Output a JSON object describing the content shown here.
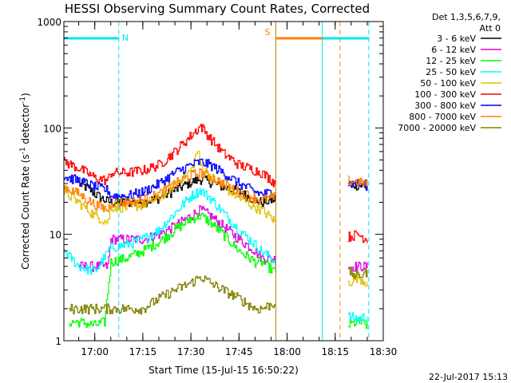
{
  "chart_data": {
    "type": "line",
    "title": "HESSI Observing Summary Count Rates, Corrected",
    "xlabel": "Start Time (15-Jul-15 16:50:22)",
    "ylabel": "Corrected Count Rate (s",
    "ylabel_sup1": "-1",
    "ylabel_mid": " detector",
    "ylabel_sup2": "-1",
    "ylabel_end": ")",
    "yscale": "log",
    "ylim": [
      1,
      1000
    ],
    "xlim": [
      "16:50:22",
      "18:30:00"
    ],
    "x_ticks": [
      "17:00",
      "17:15",
      "17:30",
      "17:45",
      "18:00",
      "18:15",
      "18:30"
    ],
    "y_ticks": [
      "1",
      "10",
      "100",
      "1000"
    ],
    "grid": false,
    "legend_position": "right",
    "legend_header": [
      "Det 1,3,5,6,7,9,",
      "Att 0"
    ],
    "timestamp": "22-Jul-2017 15:13",
    "flags": [
      {
        "label": "N",
        "color": "#00e5ee",
        "start": "16:50:22",
        "end": "17:07:30"
      },
      {
        "label": "S",
        "color": "#ff8000",
        "start": "17:56:30",
        "end": "18:16:30"
      },
      {
        "label": "",
        "color": "#00e5ee",
        "start": "18:11:00",
        "end": "18:25:30"
      }
    ],
    "markers": [
      {
        "time": "17:07:30",
        "color": "#00e5ee",
        "style": "dashed"
      },
      {
        "time": "17:56:30",
        "color": "#b8860b",
        "style": "solid"
      },
      {
        "time": "18:11:00",
        "color": "#00e5ee",
        "style": "solid"
      },
      {
        "time": "18:16:30",
        "color": "#ff8000",
        "style": "dashed"
      },
      {
        "time": "18:25:30",
        "color": "#00e5ee",
        "style": "dashed"
      }
    ],
    "segments": [
      [
        "16:50:22",
        "17:56:30"
      ],
      [
        "18:19:00",
        "18:25:30"
      ]
    ],
    "series": [
      {
        "name": "3 - 6 keV",
        "color": "#000000",
        "x": [
          "16:55",
          "16:58",
          "17:00",
          "17:03",
          "17:05",
          "17:10",
          "17:15",
          "17:20",
          "17:25",
          "17:30",
          "17:33",
          "17:36",
          "17:40",
          "17:45",
          "17:50",
          "17:52",
          "18:19",
          "18:22",
          "18:25"
        ],
        "y": [
          30,
          27,
          24,
          21,
          20,
          20,
          20,
          22,
          26,
          31,
          33,
          31,
          28,
          25,
          21,
          20,
          30,
          29,
          28
        ]
      },
      {
        "name": "6 - 12 keV",
        "color": "#e000e0",
        "x": [
          "16:55",
          "17:00",
          "17:04",
          "17:05",
          "17:10",
          "17:15",
          "17:20",
          "17:25",
          "17:30",
          "17:33",
          "17:36",
          "17:40",
          "17:45",
          "17:50",
          "17:52",
          "18:19",
          "18:22",
          "18:25"
        ],
        "y": [
          5,
          5,
          5,
          9,
          9,
          9,
          10,
          12,
          15,
          17,
          15,
          12,
          9,
          7,
          6,
          5,
          5,
          5
        ]
      },
      {
        "name": "12 - 25 keV",
        "color": "#00ff00",
        "x": [
          "16:52",
          "16:55",
          "17:00",
          "17:03",
          "17:05",
          "17:10",
          "17:15",
          "17:20",
          "17:25",
          "17:30",
          "17:33",
          "17:36",
          "17:40",
          "17:45",
          "17:50",
          "17:52",
          "18:19",
          "18:22",
          "18:25"
        ],
        "y": [
          1.5,
          1.5,
          1.4,
          1.5,
          5.5,
          6,
          7,
          8.5,
          11,
          14,
          15,
          13,
          10,
          7,
          5.5,
          5.5,
          1.4,
          1.5,
          1.4
        ]
      },
      {
        "name": "25 - 50 keV",
        "color": "#00ffff",
        "x": [
          "16:50:22",
          "16:55",
          "17:00",
          "17:05",
          "17:10",
          "17:15",
          "17:20",
          "17:25",
          "17:30",
          "17:33",
          "17:36",
          "17:40",
          "17:45",
          "17:50",
          "17:52",
          "18:19",
          "18:22",
          "18:25"
        ],
        "y": [
          7,
          5,
          4.5,
          7.5,
          8,
          9,
          11,
          16,
          23,
          26,
          22,
          16,
          11,
          8,
          7,
          1.7,
          1.6,
          1.7
        ]
      },
      {
        "name": "50 - 100 keV",
        "color": "#e0c000",
        "x": [
          "16:50:22",
          "16:55",
          "17:00",
          "17:04",
          "17:05",
          "17:10",
          "17:15",
          "17:20",
          "17:25",
          "17:30",
          "17:32",
          "17:33",
          "17:36",
          "17:40",
          "17:45",
          "17:50",
          "17:52",
          "18:19",
          "18:22",
          "18:25"
        ],
        "y": [
          25,
          20,
          15,
          13,
          18,
          18,
          19,
          22,
          30,
          40,
          62,
          45,
          35,
          28,
          22,
          18,
          17,
          3.5,
          4,
          3.5
        ]
      },
      {
        "name": "100 - 300 keV",
        "color": "#ff0000",
        "x": [
          "16:50:22",
          "16:55",
          "17:00",
          "17:04",
          "17:05",
          "17:10",
          "17:15",
          "17:20",
          "17:25",
          "17:30",
          "17:33",
          "17:36",
          "17:40",
          "17:45",
          "17:50",
          "17:52",
          "18:19",
          "18:22",
          "18:25"
        ],
        "y": [
          48,
          42,
          34,
          32,
          38,
          38,
          40,
          45,
          60,
          85,
          105,
          80,
          58,
          45,
          40,
          38,
          9.5,
          10,
          9
        ]
      },
      {
        "name": "300 - 800 keV",
        "color": "#0000ff",
        "x": [
          "16:50:22",
          "16:55",
          "17:00",
          "17:04",
          "17:05",
          "17:10",
          "17:15",
          "17:20",
          "17:25",
          "17:30",
          "17:33",
          "17:36",
          "17:40",
          "17:45",
          "17:50",
          "17:52",
          "18:19",
          "18:22",
          "18:25"
        ],
        "y": [
          35,
          32,
          28,
          26,
          23,
          23,
          25,
          30,
          38,
          45,
          48,
          45,
          38,
          30,
          25,
          24,
          30,
          30,
          29
        ]
      },
      {
        "name": "800 - 7000 keV",
        "color": "#ff8000",
        "x": [
          "16:50:22",
          "16:55",
          "17:00",
          "17:04",
          "17:05",
          "17:10",
          "17:15",
          "17:20",
          "17:25",
          "17:30",
          "17:33",
          "17:36",
          "17:40",
          "17:45",
          "17:50",
          "17:52",
          "18:19",
          "18:22",
          "18:25"
        ],
        "y": [
          28,
          24,
          19,
          17,
          20,
          20,
          21,
          24,
          30,
          36,
          38,
          35,
          30,
          25,
          22,
          21,
          32,
          31,
          30
        ]
      },
      {
        "name": "7000 - 20000 keV",
        "color": "#808000",
        "x": [
          "16:52",
          "16:55",
          "17:00",
          "17:03",
          "17:10",
          "17:15",
          "17:20",
          "17:25",
          "17:30",
          "17:33",
          "17:36",
          "17:40",
          "17:45",
          "17:50",
          "17:52",
          "18:19",
          "18:22",
          "18:25"
        ],
        "y": [
          2,
          2,
          2,
          2,
          2,
          2,
          2.5,
          3,
          3.5,
          4,
          3.5,
          3,
          2.5,
          2,
          2,
          4.5,
          4,
          4.5
        ]
      }
    ]
  }
}
